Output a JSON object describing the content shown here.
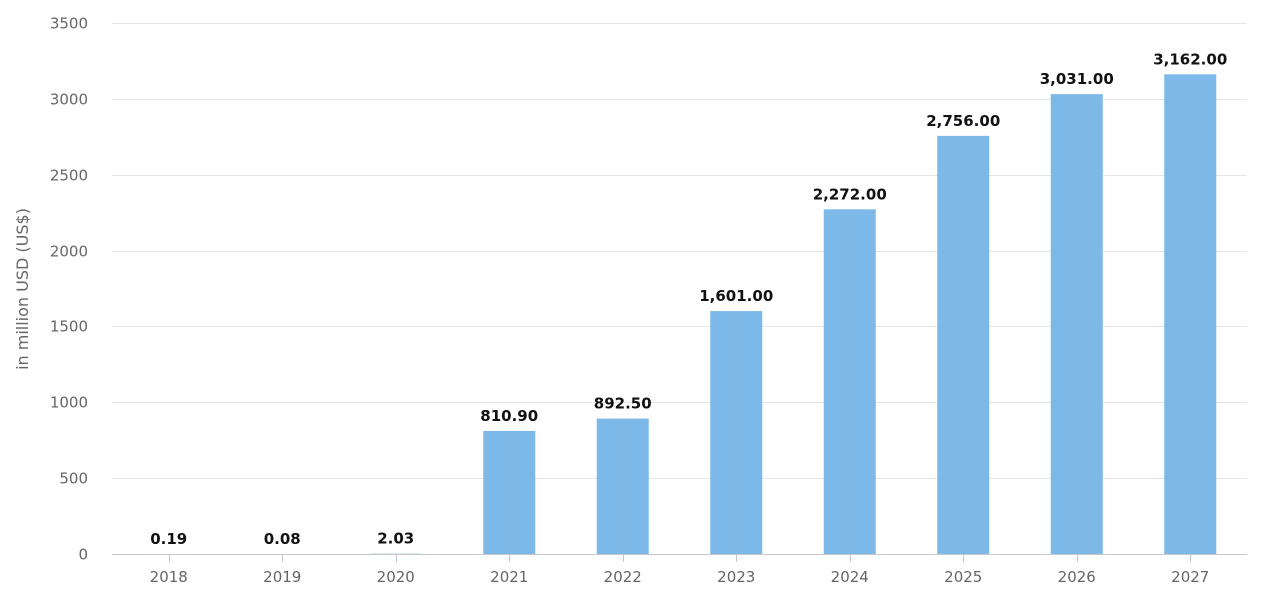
{
  "chart_data": {
    "type": "bar",
    "categories": [
      "2018",
      "2019",
      "2020",
      "2021",
      "2022",
      "2023",
      "2024",
      "2025",
      "2026",
      "2027"
    ],
    "values": [
      0.19,
      0.08,
      2.03,
      810.9,
      892.5,
      1601.0,
      2272.0,
      2756.0,
      3031.0,
      3162.0
    ],
    "data_labels": [
      "0.19",
      "0.08",
      "2.03",
      "810.90",
      "892.50",
      "1,601.00",
      "2,272.00",
      "2,756.00",
      "3,031.00",
      "3,162.00"
    ],
    "title": "",
    "xlabel": "",
    "ylabel": "in million USD (US$)",
    "ylim": [
      0,
      3500
    ],
    "yticks": [
      "0",
      "500",
      "1000",
      "1500",
      "2000",
      "2500",
      "3000",
      "3500"
    ],
    "grid": true,
    "legend": "none",
    "colors": {
      "bar": "#7db9e8",
      "grid": "#e6e6e6",
      "axis": "#c8c8c8",
      "tick_text": "#666666",
      "label_text": "#111111"
    }
  }
}
